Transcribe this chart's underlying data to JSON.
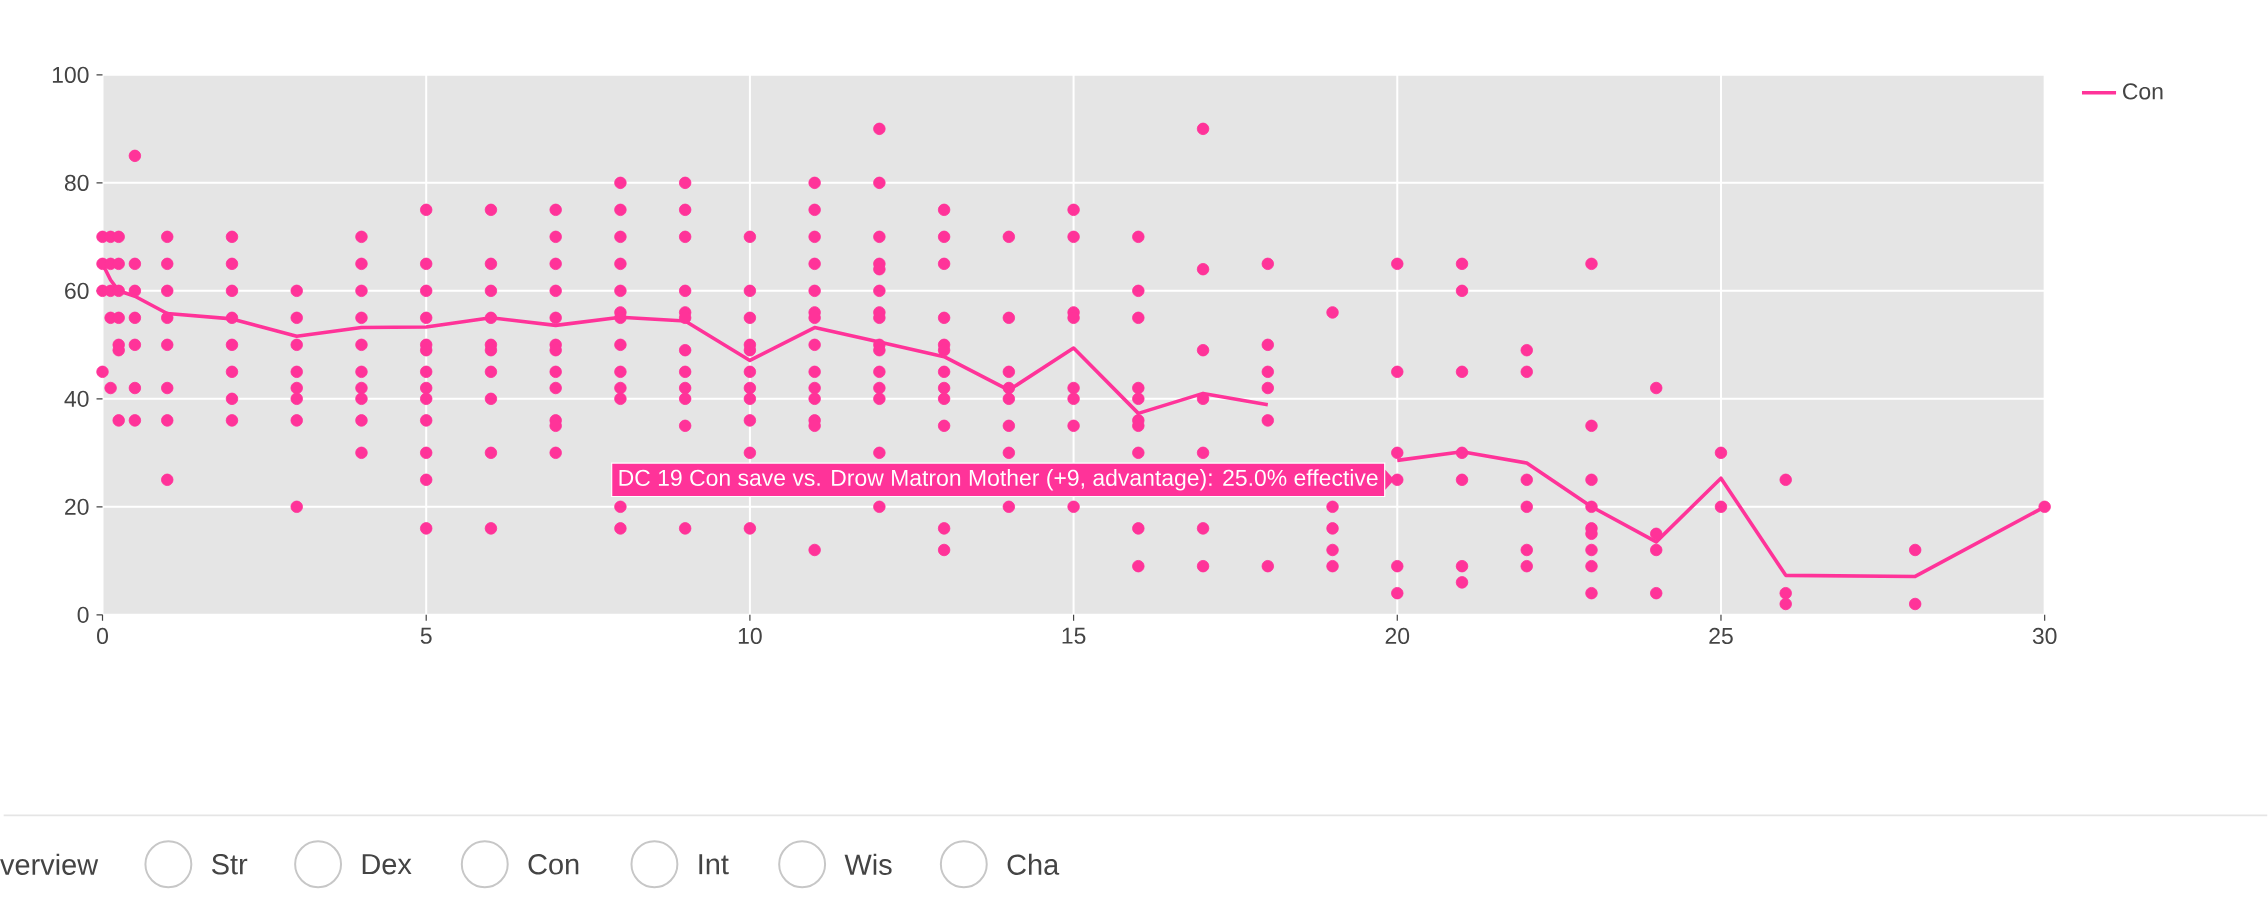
{
  "chart_data": {
    "type": "scatter",
    "xlim": [
      0,
      30
    ],
    "ylim": [
      0,
      100
    ],
    "xticks": [
      0,
      5,
      10,
      15,
      20,
      25,
      30
    ],
    "yticks": [
      0,
      20,
      40,
      60,
      80,
      100
    ],
    "grid": true,
    "legend": "top right",
    "series": [
      {
        "color": "#ff3399",
        "marker": "circle",
        "x": [
          0,
          0,
          0,
          0,
          0.125,
          0.125,
          0.125,
          0.125,
          0.125,
          0.25,
          0.25,
          0.25,
          0.25,
          0.25,
          0.25,
          0.25,
          0.5,
          0.5,
          0.5,
          0.5,
          0.5,
          0.5,
          0.5,
          1,
          1,
          1,
          1,
          1,
          1,
          1,
          1,
          2,
          2,
          2,
          2,
          2,
          2,
          2,
          2,
          3,
          3,
          3,
          3,
          3,
          3,
          3,
          3,
          4,
          4,
          4,
          4,
          4,
          4,
          4,
          4,
          4,
          4,
          5,
          5,
          5,
          5,
          5,
          5,
          5,
          5,
          5,
          5,
          5,
          5,
          5,
          6,
          6,
          6,
          6,
          6,
          6,
          6,
          6,
          6,
          6,
          7,
          7,
          7,
          7,
          7,
          7,
          7,
          7,
          7,
          7,
          7,
          7,
          8,
          8,
          8,
          8,
          8,
          8,
          8,
          8,
          8,
          8,
          8,
          8,
          8,
          9,
          9,
          9,
          9,
          9,
          9,
          9,
          9,
          9,
          9,
          9,
          9,
          10,
          10,
          10,
          10,
          10,
          10,
          10,
          10,
          10,
          10,
          10,
          11,
          11,
          11,
          11,
          11,
          11,
          11,
          11,
          11,
          11,
          11,
          11,
          11,
          11,
          12,
          12,
          12,
          12,
          12,
          12,
          12,
          12,
          12,
          12,
          12,
          12,
          12,
          12,
          12,
          13,
          13,
          13,
          13,
          13,
          13,
          13,
          13,
          13,
          13,
          13,
          13,
          14,
          14,
          14,
          14,
          14,
          14,
          14,
          14,
          15,
          15,
          15,
          15,
          15,
          15,
          15,
          15,
          16,
          16,
          16,
          16,
          16,
          16,
          16,
          16,
          16,
          16,
          17,
          17,
          17,
          17,
          17,
          17,
          17,
          18,
          18,
          18,
          18,
          18,
          18,
          19,
          19,
          19,
          19,
          19,
          20,
          20,
          20,
          20,
          20,
          20,
          21,
          21,
          21,
          21,
          21,
          21,
          21,
          22,
          22,
          22,
          22,
          22,
          22,
          23,
          23,
          23,
          23,
          23,
          23,
          23,
          23,
          23,
          24,
          24,
          24,
          24,
          25,
          25,
          26,
          26,
          26,
          28,
          28,
          30
        ],
        "values": [
          70,
          65,
          60,
          45,
          70,
          65,
          60,
          55,
          42,
          70,
          65,
          60,
          55,
          50,
          49,
          36,
          85,
          65,
          60,
          55,
          50,
          42,
          36,
          70,
          65,
          60,
          55,
          50,
          42,
          36,
          25,
          70,
          65,
          60,
          55,
          50,
          45,
          40,
          36,
          60,
          55,
          50,
          45,
          42,
          40,
          36,
          20,
          70,
          65,
          60,
          55,
          50,
          45,
          42,
          40,
          36,
          30,
          75,
          65,
          60,
          55,
          50,
          49,
          45,
          42,
          40,
          36,
          30,
          25,
          16,
          75,
          65,
          60,
          55,
          50,
          49,
          45,
          40,
          30,
          16,
          75,
          70,
          65,
          60,
          55,
          50,
          49,
          45,
          42,
          36,
          35,
          30,
          80,
          75,
          70,
          65,
          60,
          56,
          55,
          50,
          45,
          42,
          40,
          20,
          16,
          80,
          75,
          70,
          60,
          56,
          55,
          49,
          45,
          42,
          40,
          35,
          16,
          70,
          60,
          55,
          50,
          49,
          45,
          42,
          40,
          36,
          30,
          16,
          80,
          75,
          70,
          65,
          60,
          56,
          55,
          50,
          45,
          42,
          40,
          36,
          35,
          12,
          90,
          80,
          70,
          65,
          64,
          60,
          56,
          55,
          50,
          49,
          45,
          42,
          40,
          30,
          20,
          75,
          70,
          65,
          55,
          50,
          49,
          45,
          42,
          40,
          35,
          16,
          12,
          70,
          55,
          45,
          42,
          40,
          35,
          30,
          20,
          75,
          70,
          56,
          55,
          42,
          40,
          35,
          20,
          70,
          60,
          55,
          42,
          40,
          36,
          35,
          30,
          16,
          9,
          90,
          64,
          49,
          40,
          30,
          16,
          9,
          65,
          50,
          45,
          42,
          36,
          9,
          56,
          20,
          16,
          12,
          9,
          65,
          45,
          30,
          25,
          9,
          4,
          65,
          60,
          45,
          30,
          25,
          9,
          6,
          49,
          45,
          25,
          20,
          12,
          9,
          65,
          35,
          25,
          20,
          16,
          15,
          12,
          9,
          4,
          42,
          15,
          12,
          4,
          30,
          20,
          25,
          4,
          2,
          12,
          2,
          20
        ]
      },
      {
        "type": "line",
        "name": "Con",
        "color": "#ff3399",
        "marker": "none",
        "x": [
          0,
          0.125,
          0.25,
          0.5,
          1,
          2,
          3,
          4,
          5,
          6,
          7,
          8,
          9,
          10,
          11,
          12,
          13,
          14,
          15,
          16,
          17,
          18,
          19,
          20,
          21,
          22,
          23,
          24,
          25,
          26,
          28,
          30
        ],
        "values": [
          65,
          62,
          60,
          59,
          55.8,
          54.8,
          51.6,
          53.2,
          53.3,
          55,
          53.6,
          55.1,
          54.4,
          47.1,
          53.2,
          50.5,
          47.8,
          41.6,
          49.4,
          37.3,
          41,
          38.9,
          null,
          28.6,
          30.2,
          28.1,
          20,
          13.5,
          25.3,
          7.3,
          7.1,
          20
        ]
      }
    ],
    "annotations": [
      {
        "text": "DC 19 Con save vs. Drow Matron Mother (+9, advantage): 25.0% effective",
        "x": 20,
        "y": 25
      },
      "verview",
      "Str",
      "Dex",
      "Con",
      "Int",
      "Wis",
      "Cha"
    ]
  }
}
